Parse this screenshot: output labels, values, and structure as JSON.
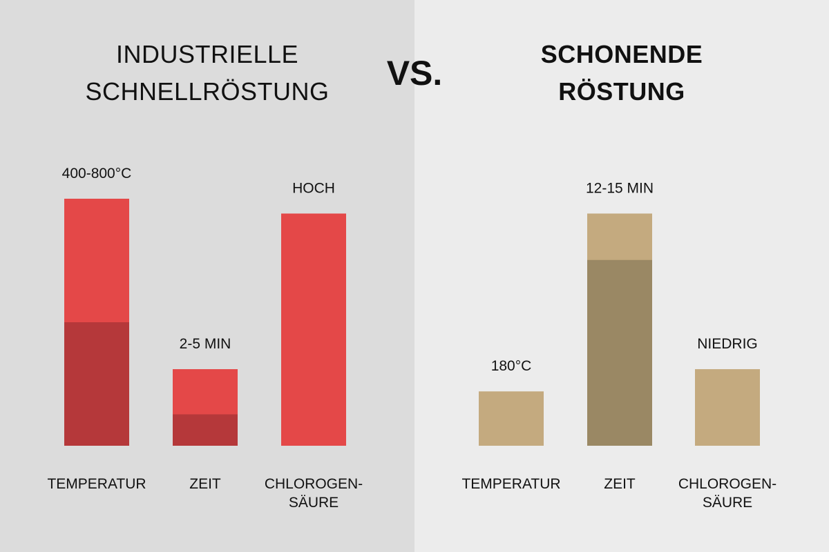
{
  "colors": {
    "left_panel_bg": "#dcdcdc",
    "right_panel_bg": "#ececec",
    "left_bar": "#e44848",
    "left_bar_dark": "#b5383a",
    "right_bar": "#c4aa7f",
    "right_bar_dark": "#9a8864"
  },
  "header": {
    "left_title_line1": "INDUSTRIELLE",
    "left_title_line2": "SCHNELLRÖSTUNG",
    "vs": "VS.",
    "right_title_line1": "SCHONENDE",
    "right_title_line2": "RÖSTUNG"
  },
  "chart_data": [
    {
      "type": "bar",
      "title": "INDUSTRIELLE SCHNELLRÖSTUNG",
      "categories": [
        [
          "TEMPERATUR"
        ],
        [
          "ZEIT"
        ],
        [
          "CHLOROGEN-",
          "SÄURE"
        ]
      ],
      "value_labels": [
        "400-800°C",
        "2-5 MIN",
        "HOCH"
      ],
      "values": [
        1.0,
        0.31,
        0.94
      ],
      "dark_fraction": [
        0.5,
        0.41,
        0
      ],
      "ylim": [
        0,
        1
      ],
      "color": "#e44848",
      "dark_color": "#b5383a"
    },
    {
      "type": "bar",
      "title": "SCHONENDE RÖSTUNG",
      "categories": [
        [
          "TEMPERATUR"
        ],
        [
          "ZEIT"
        ],
        [
          "CHLOROGEN-",
          "SÄURE"
        ]
      ],
      "value_labels": [
        "180°C",
        "12-15 MIN",
        "NIEDRIG"
      ],
      "values": [
        0.22,
        0.94,
        0.31
      ],
      "dark_fraction": [
        0,
        0.8,
        0
      ],
      "ylim": [
        0,
        1
      ],
      "color": "#c4aa7f",
      "dark_color": "#9a8864"
    }
  ]
}
